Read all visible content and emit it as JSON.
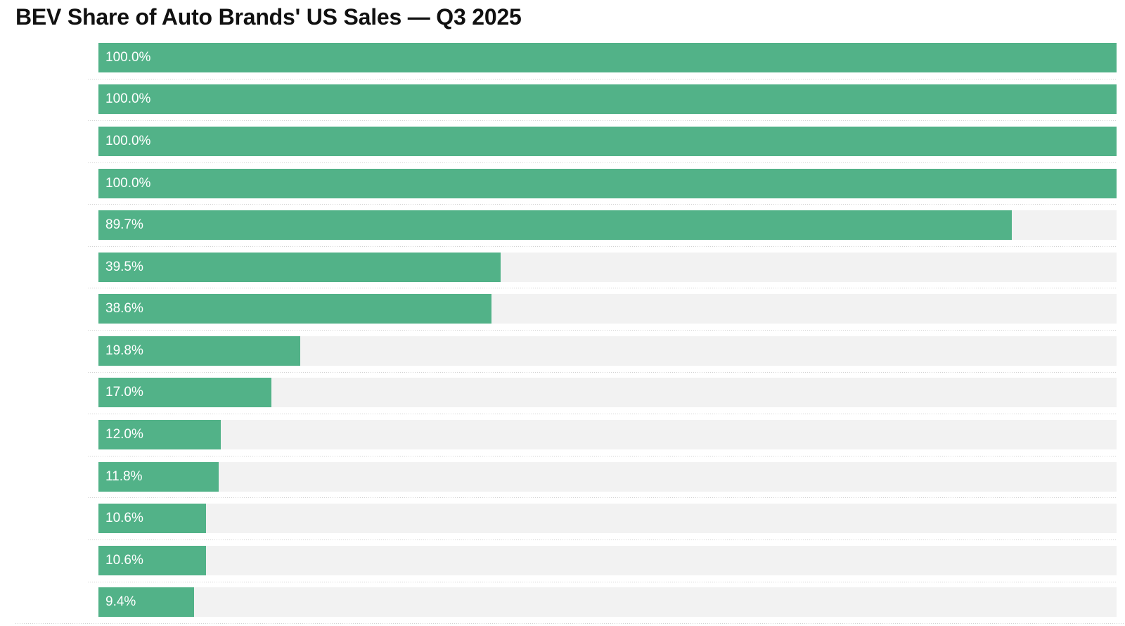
{
  "chart_data": {
    "type": "bar",
    "orientation": "horizontal",
    "title": "BEV Share of Auto Brands' US Sales — Q3 2025",
    "values": [
      100.0,
      100.0,
      100.0,
      100.0,
      89.7,
      39.5,
      38.6,
      19.8,
      17.0,
      12.0,
      11.8,
      10.6,
      10.6,
      9.4
    ],
    "labels": [
      "100.0%",
      "100.0%",
      "100.0%",
      "100.0%",
      "89.7%",
      "39.5%",
      "38.6%",
      "19.8%",
      "17.0%",
      "12.0%",
      "11.8%",
      "10.6%",
      "10.6%",
      "9.4%"
    ],
    "value_label_position": "inside-left",
    "xlim": [
      0,
      100
    ],
    "legend": "none",
    "grid": "dotted row separators and dotted bottom axis line; no visible category or axis tick labels",
    "colors": {
      "bar": "#52b288",
      "track": "#f2f2f2",
      "gridline": "#d2d2d2",
      "title": "#111111",
      "value_label_text": "#ffffff",
      "background": "#ffffff"
    }
  }
}
